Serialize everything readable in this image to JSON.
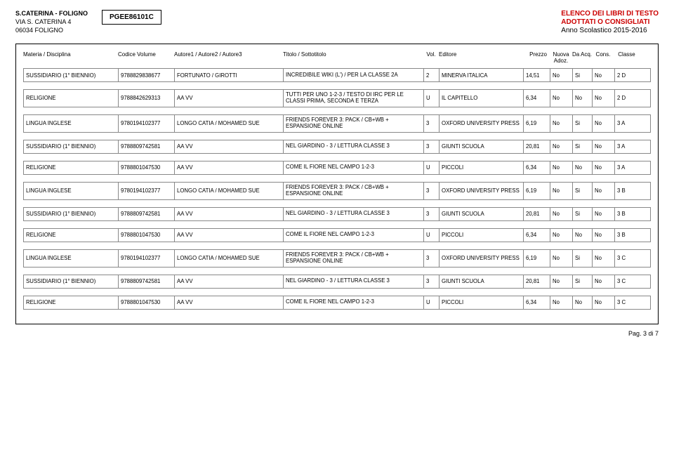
{
  "header": {
    "school_name": "S.CATERINA - FOLIGNO",
    "address1": "VIA S. CATERINA    4",
    "address2": "06034  FOLIGNO",
    "code": "PGEE86101C",
    "title_line1": "ELENCO DEI LIBRI DI TESTO",
    "title_line2": "ADOTTATI O CONSIGLIATI",
    "year": "Anno Scolastico 2015-2016"
  },
  "columns": {
    "materia": "Materia / Disciplina",
    "codice": "Codice Volume",
    "autore": "Autore1 / Autore2 / Autore3",
    "titolo": "Titolo / Sottotitolo",
    "vol": "Vol.",
    "editore": "Editore",
    "prezzo": "Prezzo",
    "nuova": "Nuova Adoz.",
    "da": "Da Acq.",
    "cons": "Cons.",
    "classe": "Classe"
  },
  "rows": [
    {
      "materia": "SUSSIDIARIO (1° BIENNIO)",
      "codice": "9788829838677",
      "autore": "FORTUNATO / GIROTTI",
      "titolo": "INCREDIBILE WIKI (L') / PER LA CLASSE 2A",
      "vol": "2",
      "editore": "MINERVA ITALICA",
      "prezzo": "14,51",
      "nuova": "No",
      "da": "Si",
      "cons": "No",
      "classe": "2 D"
    },
    {
      "materia": "RELIGIONE",
      "codice": "9788842629313",
      "autore": "AA VV",
      "titolo": "TUTTI PER UNO 1-2-3 / TESTO DI IRC PER LE CLASSI PRIMA, SECONDA E TERZA",
      "vol": "U",
      "editore": "IL CAPITELLO",
      "prezzo": "6,34",
      "nuova": "No",
      "da": "No",
      "cons": "No",
      "classe": "2 D"
    },
    {
      "materia": "LINGUA INGLESE",
      "codice": "9780194102377",
      "autore": "LONGO CATIA / MOHAMED SUE",
      "titolo": "FRIENDS FOREVER 3: PACK / CB+WB + ESPANSIONE ONLINE",
      "vol": "3",
      "editore": "OXFORD UNIVERSITY PRESS",
      "prezzo": "6,19",
      "nuova": "No",
      "da": "Si",
      "cons": "No",
      "classe": "3 A"
    },
    {
      "materia": "SUSSIDIARIO (1° BIENNIO)",
      "codice": "9788809742581",
      "autore": "AA VV",
      "titolo": "NEL GIARDINO - 3 / LETTURA CLASSE 3",
      "vol": "3",
      "editore": "GIUNTI SCUOLA",
      "prezzo": "20,81",
      "nuova": "No",
      "da": "Si",
      "cons": "No",
      "classe": "3 A"
    },
    {
      "materia": "RELIGIONE",
      "codice": "9788801047530",
      "autore": "AA VV",
      "titolo": "COME IL FIORE NEL CAMPO 1-2-3",
      "vol": "U",
      "editore": "PICCOLI",
      "prezzo": "6,34",
      "nuova": "No",
      "da": "No",
      "cons": "No",
      "classe": "3 A"
    },
    {
      "materia": "LINGUA INGLESE",
      "codice": "9780194102377",
      "autore": "LONGO CATIA / MOHAMED SUE",
      "titolo": "FRIENDS FOREVER 3: PACK / CB+WB + ESPANSIONE ONLINE",
      "vol": "3",
      "editore": "OXFORD UNIVERSITY PRESS",
      "prezzo": "6,19",
      "nuova": "No",
      "da": "Si",
      "cons": "No",
      "classe": "3 B"
    },
    {
      "materia": "SUSSIDIARIO (1° BIENNIO)",
      "codice": "9788809742581",
      "autore": "AA VV",
      "titolo": "NEL GIARDINO - 3 / LETTURA CLASSE 3",
      "vol": "3",
      "editore": "GIUNTI SCUOLA",
      "prezzo": "20,81",
      "nuova": "No",
      "da": "Si",
      "cons": "No",
      "classe": "3 B"
    },
    {
      "materia": "RELIGIONE",
      "codice": "9788801047530",
      "autore": "AA VV",
      "titolo": "COME IL FIORE NEL CAMPO 1-2-3",
      "vol": "U",
      "editore": "PICCOLI",
      "prezzo": "6,34",
      "nuova": "No",
      "da": "No",
      "cons": "No",
      "classe": "3 B"
    },
    {
      "materia": "LINGUA INGLESE",
      "codice": "9780194102377",
      "autore": "LONGO CATIA / MOHAMED SUE",
      "titolo": "FRIENDS FOREVER 3: PACK / CB+WB + ESPANSIONE ONLINE",
      "vol": "3",
      "editore": "OXFORD UNIVERSITY PRESS",
      "prezzo": "6,19",
      "nuova": "No",
      "da": "Si",
      "cons": "No",
      "classe": "3 C"
    },
    {
      "materia": "SUSSIDIARIO (1° BIENNIO)",
      "codice": "9788809742581",
      "autore": "AA VV",
      "titolo": "NEL GIARDINO - 3 / LETTURA CLASSE 3",
      "vol": "3",
      "editore": "GIUNTI SCUOLA",
      "prezzo": "20,81",
      "nuova": "No",
      "da": "Si",
      "cons": "No",
      "classe": "3 C"
    },
    {
      "materia": "RELIGIONE",
      "codice": "9788801047530",
      "autore": "AA VV",
      "titolo": "COME IL FIORE NEL CAMPO 1-2-3",
      "vol": "U",
      "editore": "PICCOLI",
      "prezzo": "6,34",
      "nuova": "No",
      "da": "No",
      "cons": "No",
      "classe": "3 C"
    }
  ],
  "footer": "Pag. 3 di 7"
}
